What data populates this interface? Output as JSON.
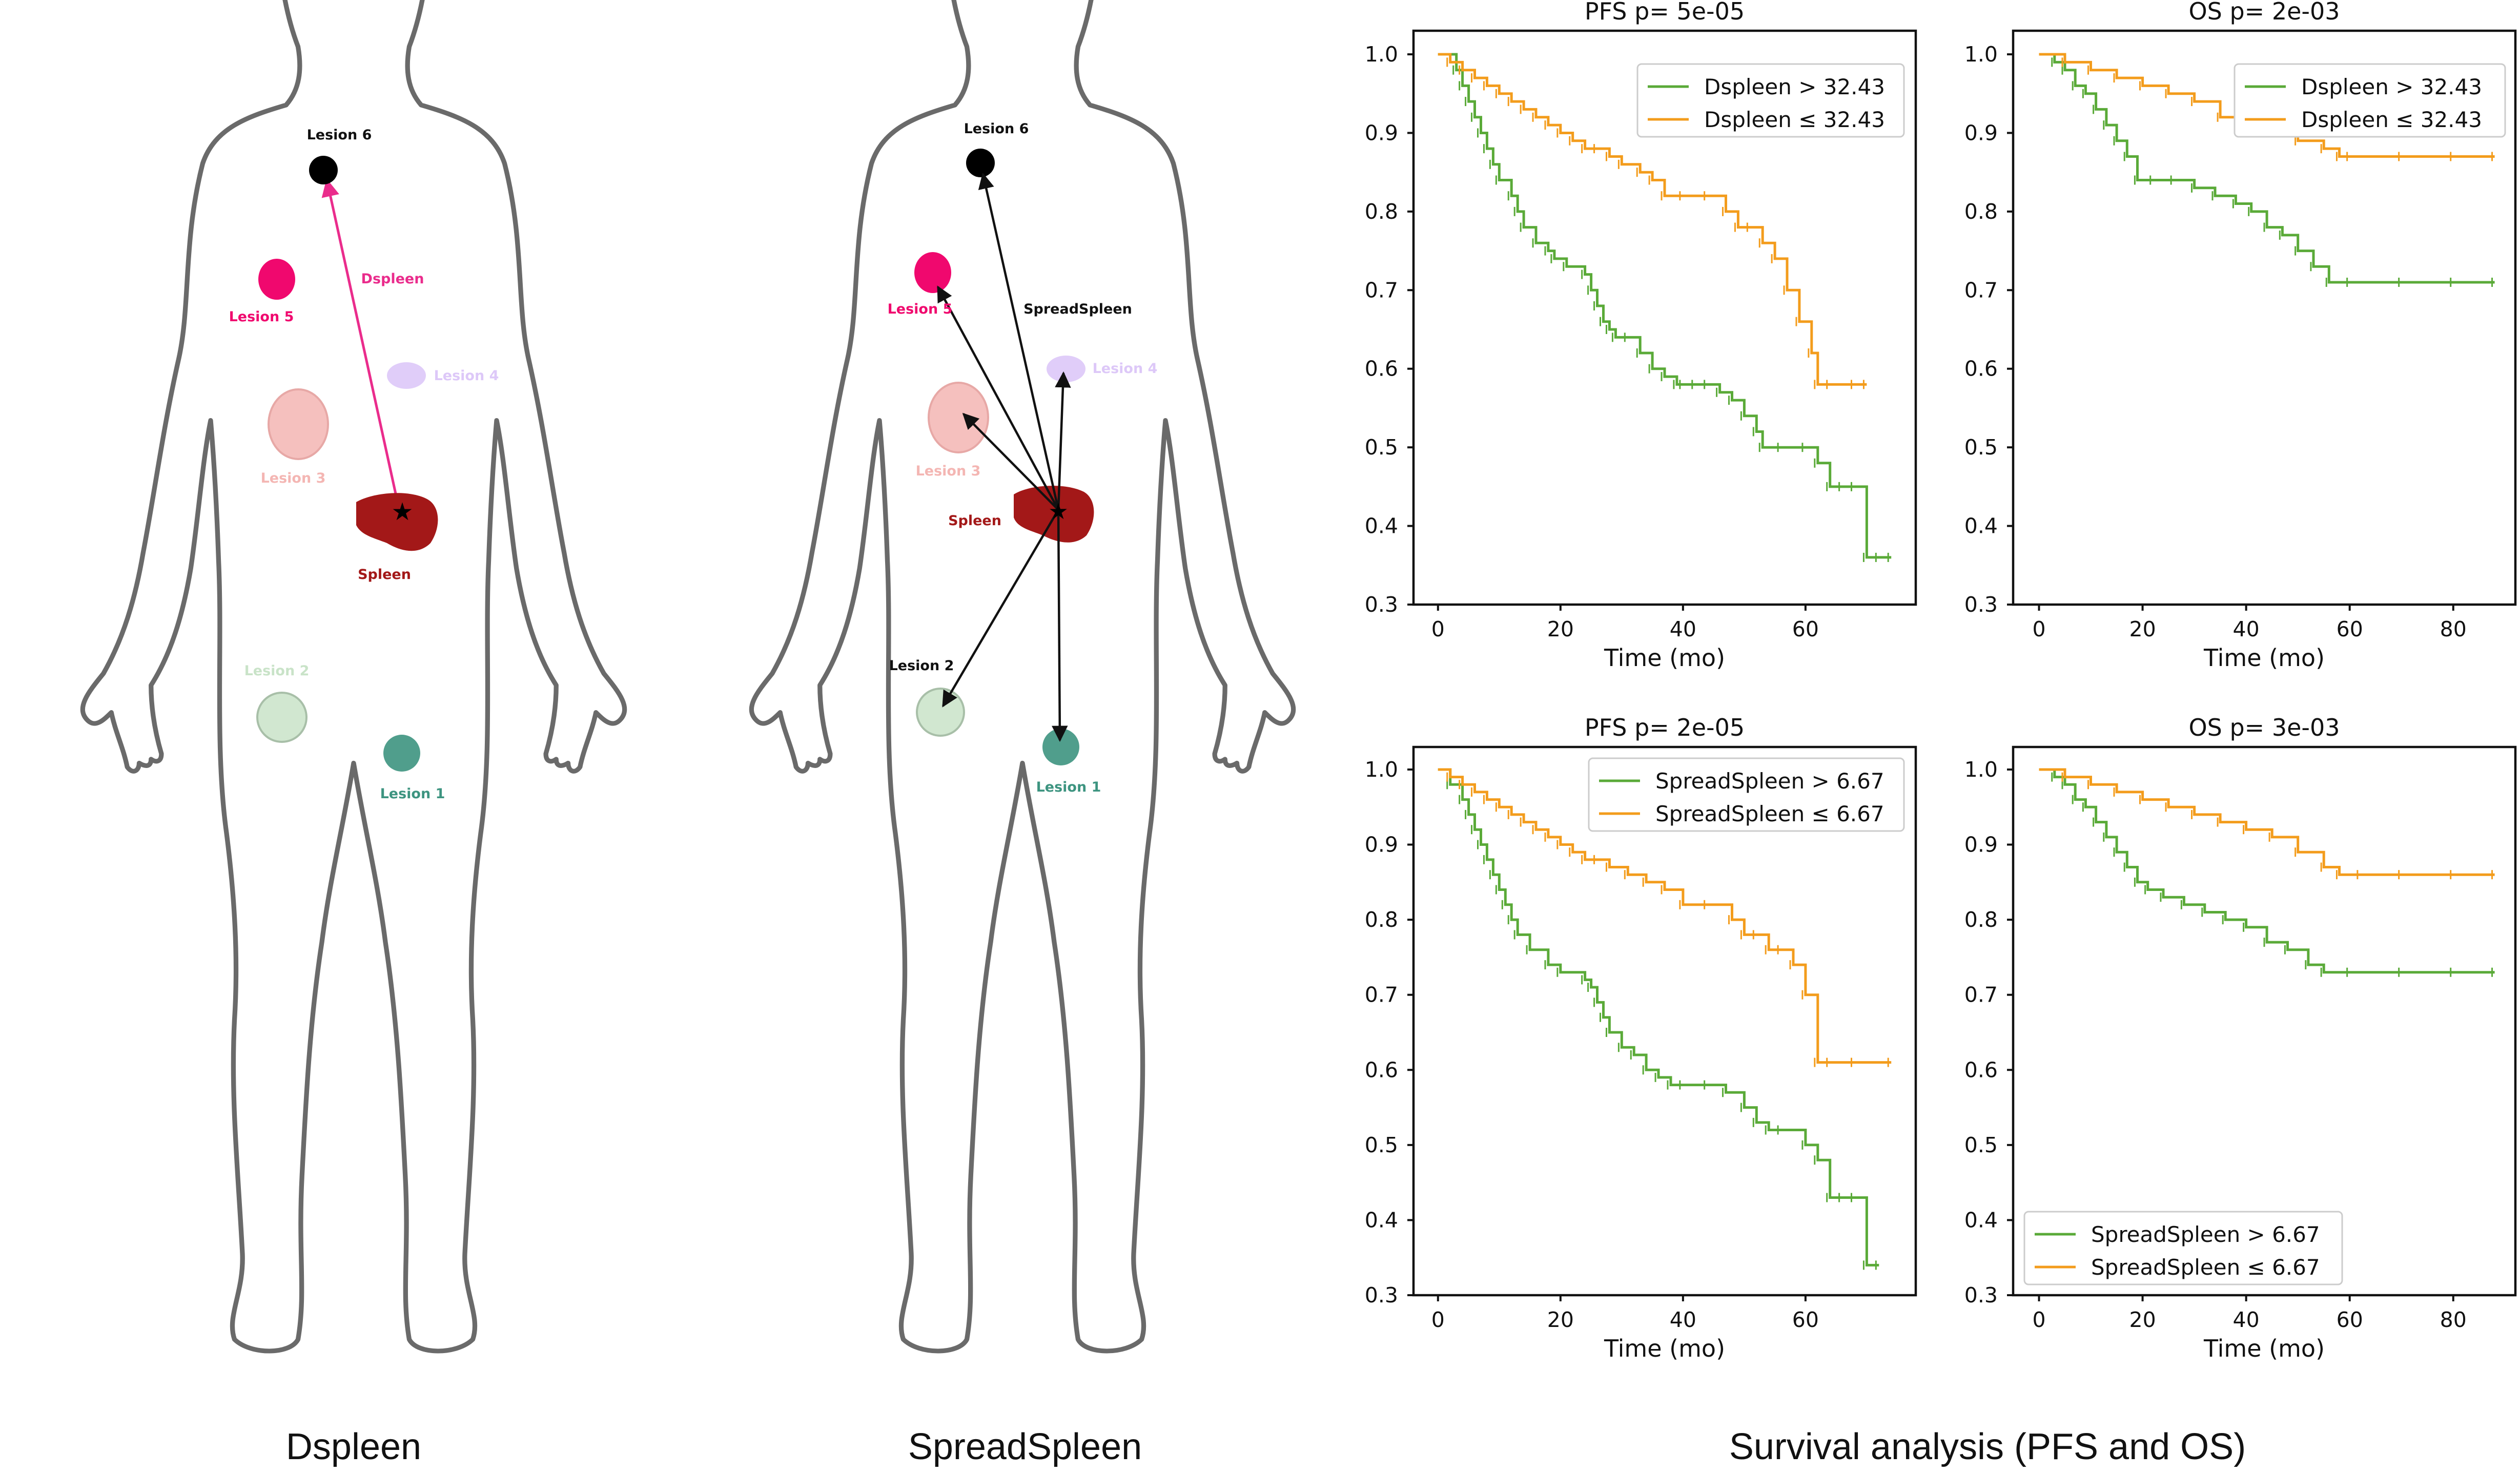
{
  "panels": {
    "dspleen": {
      "caption": "Dspleen",
      "feature_label": "Dspleen",
      "spleen_label": "Spleen",
      "lesions": [
        {
          "name": "Lesion 1",
          "color": "#3d9480"
        },
        {
          "name": "Lesion 2",
          "color": "#c9e3c8"
        },
        {
          "name": "Lesion 3",
          "color": "#f4b6b3"
        },
        {
          "name": "Lesion 4",
          "color": "#ddc8f8"
        },
        {
          "name": "Lesion 5",
          "color": "#f0086e"
        },
        {
          "name": "Lesion 6",
          "color": "#000000"
        }
      ]
    },
    "spreadspleen": {
      "caption": "SpreadSpleen",
      "feature_label": "SpreadSpleen",
      "spleen_label": "Spleen",
      "lesions": [
        {
          "name": "Lesion 1",
          "color": "#3d9480"
        },
        {
          "name": "Lesion 2",
          "color": "#c9e3c8"
        },
        {
          "name": "Lesion 3",
          "color": "#f4b6b3"
        },
        {
          "name": "Lesion 4",
          "color": "#ddc8f8"
        },
        {
          "name": "Lesion 5",
          "color": "#f0086e"
        },
        {
          "name": "Lesion 6",
          "color": "#000000"
        }
      ]
    },
    "survival": {
      "caption": "Survival analysis (PFS and OS)"
    }
  },
  "colors": {
    "high_group": "#5aaa38",
    "low_group": "#f39c1c",
    "dspleen_arrow": "#ea2c8c",
    "spleen": "#a31818",
    "spleen_label": "#a31818"
  },
  "chart_data": [
    {
      "type": "line",
      "subtype": "kaplan-meier",
      "title": "PFS p= 5e-05",
      "xlabel": "Time (mo)",
      "ylabel": "",
      "xlim": [
        -4,
        78
      ],
      "ylim": [
        0.3,
        1.03
      ],
      "xticks": [
        0,
        20,
        40,
        60
      ],
      "yticks": [
        0.3,
        0.4,
        0.5,
        0.6,
        0.7,
        0.8,
        0.9,
        1.0
      ],
      "grid": false,
      "legend_position": "top-right",
      "series": [
        {
          "name": "Dspleen >  32.43",
          "color": "#5aaa38",
          "x": [
            0,
            3,
            4,
            5,
            6,
            7,
            8,
            9,
            10,
            12,
            13,
            14,
            16,
            18,
            19,
            21,
            24,
            25,
            26,
            27,
            28,
            29,
            31,
            33,
            35,
            37,
            39,
            40,
            42,
            44,
            46,
            48,
            50,
            52,
            53,
            56,
            60,
            62,
            64,
            66,
            68,
            70,
            72,
            74
          ],
          "y": [
            1.0,
            0.98,
            0.96,
            0.94,
            0.92,
            0.9,
            0.88,
            0.86,
            0.84,
            0.82,
            0.8,
            0.78,
            0.76,
            0.75,
            0.74,
            0.73,
            0.72,
            0.7,
            0.68,
            0.66,
            0.65,
            0.64,
            0.64,
            0.62,
            0.6,
            0.59,
            0.58,
            0.58,
            0.58,
            0.58,
            0.57,
            0.56,
            0.54,
            0.52,
            0.5,
            0.5,
            0.5,
            0.48,
            0.45,
            0.45,
            0.45,
            0.36,
            0.36,
            0.36
          ]
        },
        {
          "name": "Dspleen $\\leq$ 32.43",
          "color": "#f39c1c",
          "x": [
            0,
            2,
            4,
            6,
            8,
            10,
            12,
            14,
            16,
            18,
            20,
            22,
            24,
            26,
            28,
            30,
            33,
            35,
            37,
            40,
            44,
            47,
            49,
            51,
            53,
            55,
            57,
            59,
            61,
            62,
            64,
            68,
            70
          ],
          "y": [
            1.0,
            0.99,
            0.98,
            0.97,
            0.96,
            0.95,
            0.94,
            0.93,
            0.92,
            0.91,
            0.9,
            0.89,
            0.88,
            0.88,
            0.87,
            0.86,
            0.85,
            0.84,
            0.82,
            0.82,
            0.82,
            0.8,
            0.78,
            0.78,
            0.76,
            0.74,
            0.7,
            0.66,
            0.62,
            0.58,
            0.58,
            0.58,
            0.58
          ]
        }
      ]
    },
    {
      "type": "line",
      "subtype": "kaplan-meier",
      "title": "OS p= 2e-03",
      "xlabel": "Time (mo)",
      "ylabel": "",
      "xlim": [
        -5,
        92
      ],
      "ylim": [
        0.3,
        1.03
      ],
      "xticks": [
        0,
        20,
        40,
        60,
        80
      ],
      "yticks": [
        0.3,
        0.4,
        0.5,
        0.6,
        0.7,
        0.8,
        0.9,
        1.0
      ],
      "grid": false,
      "legend_position": "top-right",
      "series": [
        {
          "name": "Dspleen >  32.43",
          "color": "#5aaa38",
          "x": [
            0,
            3,
            5,
            7,
            9,
            11,
            13,
            15,
            17,
            19,
            22,
            26,
            30,
            34,
            38,
            41,
            44,
            47,
            50,
            53,
            56,
            60,
            70,
            80,
            88
          ],
          "y": [
            1.0,
            0.99,
            0.98,
            0.96,
            0.95,
            0.93,
            0.91,
            0.89,
            0.87,
            0.84,
            0.84,
            0.84,
            0.83,
            0.82,
            0.81,
            0.8,
            0.78,
            0.77,
            0.75,
            0.73,
            0.71,
            0.71,
            0.71,
            0.71,
            0.71
          ]
        },
        {
          "name": "Dspleen $\\leq$ 32.43",
          "color": "#f39c1c",
          "x": [
            0,
            5,
            10,
            15,
            20,
            25,
            30,
            35,
            40,
            45,
            50,
            55,
            58,
            60,
            70,
            80,
            88
          ],
          "y": [
            1.0,
            0.99,
            0.98,
            0.97,
            0.96,
            0.95,
            0.94,
            0.92,
            0.91,
            0.9,
            0.89,
            0.88,
            0.87,
            0.87,
            0.87,
            0.87,
            0.87
          ]
        }
      ]
    },
    {
      "type": "line",
      "subtype": "kaplan-meier",
      "title": "PFS p= 2e-05",
      "xlabel": "Time (mo)",
      "ylabel": "",
      "xlim": [
        -4,
        78
      ],
      "ylim": [
        0.3,
        1.03
      ],
      "xticks": [
        0,
        20,
        40,
        60
      ],
      "yticks": [
        0.3,
        0.4,
        0.5,
        0.6,
        0.7,
        0.8,
        0.9,
        1.0
      ],
      "grid": false,
      "legend_position": "top-right",
      "series": [
        {
          "name": "SpreadSpleen >  6.67",
          "color": "#5aaa38",
          "x": [
            0,
            2,
            4,
            5,
            6,
            7,
            8,
            9,
            10,
            11,
            12,
            13,
            15,
            18,
            20,
            24,
            25,
            26,
            27,
            28,
            30,
            32,
            34,
            36,
            38,
            40,
            44,
            47,
            50,
            52,
            54,
            56,
            60,
            62,
            64,
            66,
            68,
            70,
            72
          ],
          "y": [
            1.0,
            0.98,
            0.96,
            0.94,
            0.92,
            0.9,
            0.88,
            0.86,
            0.84,
            0.82,
            0.8,
            0.78,
            0.76,
            0.74,
            0.73,
            0.72,
            0.71,
            0.69,
            0.67,
            0.65,
            0.63,
            0.62,
            0.6,
            0.59,
            0.58,
            0.58,
            0.58,
            0.57,
            0.55,
            0.53,
            0.52,
            0.52,
            0.5,
            0.48,
            0.43,
            0.43,
            0.43,
            0.34,
            0.34
          ]
        },
        {
          "name": "SpreadSpleen $\\leq$ 6.67",
          "color": "#f39c1c",
          "x": [
            0,
            2,
            4,
            6,
            8,
            10,
            12,
            14,
            16,
            18,
            20,
            22,
            24,
            26,
            28,
            31,
            34,
            37,
            40,
            44,
            48,
            50,
            52,
            54,
            56,
            58,
            60,
            62,
            64,
            68,
            74
          ],
          "y": [
            1.0,
            0.99,
            0.98,
            0.97,
            0.96,
            0.95,
            0.94,
            0.93,
            0.92,
            0.91,
            0.9,
            0.89,
            0.88,
            0.88,
            0.87,
            0.86,
            0.85,
            0.84,
            0.82,
            0.82,
            0.8,
            0.78,
            0.78,
            0.76,
            0.76,
            0.74,
            0.7,
            0.61,
            0.61,
            0.61,
            0.61
          ]
        }
      ]
    },
    {
      "type": "line",
      "subtype": "kaplan-meier",
      "title": "OS p= 3e-03",
      "xlabel": "Time (mo)",
      "ylabel": "",
      "xlim": [
        -5,
        92
      ],
      "ylim": [
        0.3,
        1.03
      ],
      "xticks": [
        0,
        20,
        40,
        60,
        80
      ],
      "yticks": [
        0.3,
        0.4,
        0.5,
        0.6,
        0.7,
        0.8,
        0.9,
        1.0
      ],
      "grid": false,
      "legend_position": "lower-left",
      "series": [
        {
          "name": "SpreadSpleen >  6.67",
          "color": "#5aaa38",
          "x": [
            0,
            3,
            5,
            7,
            9,
            11,
            13,
            15,
            17,
            19,
            21,
            24,
            28,
            32,
            36,
            40,
            44,
            48,
            52,
            55,
            60,
            70,
            80,
            88
          ],
          "y": [
            1.0,
            0.99,
            0.98,
            0.96,
            0.95,
            0.93,
            0.91,
            0.89,
            0.87,
            0.85,
            0.84,
            0.83,
            0.82,
            0.81,
            0.8,
            0.79,
            0.77,
            0.76,
            0.74,
            0.73,
            0.73,
            0.73,
            0.73,
            0.73
          ]
        },
        {
          "name": "SpreadSpleen $\\leq$ 6.67",
          "color": "#f39c1c",
          "x": [
            0,
            5,
            10,
            15,
            20,
            25,
            30,
            35,
            40,
            45,
            50,
            55,
            58,
            62,
            70,
            80,
            88
          ],
          "y": [
            1.0,
            0.99,
            0.98,
            0.97,
            0.96,
            0.95,
            0.94,
            0.93,
            0.92,
            0.91,
            0.89,
            0.87,
            0.86,
            0.86,
            0.86,
            0.86,
            0.86
          ]
        }
      ]
    }
  ]
}
